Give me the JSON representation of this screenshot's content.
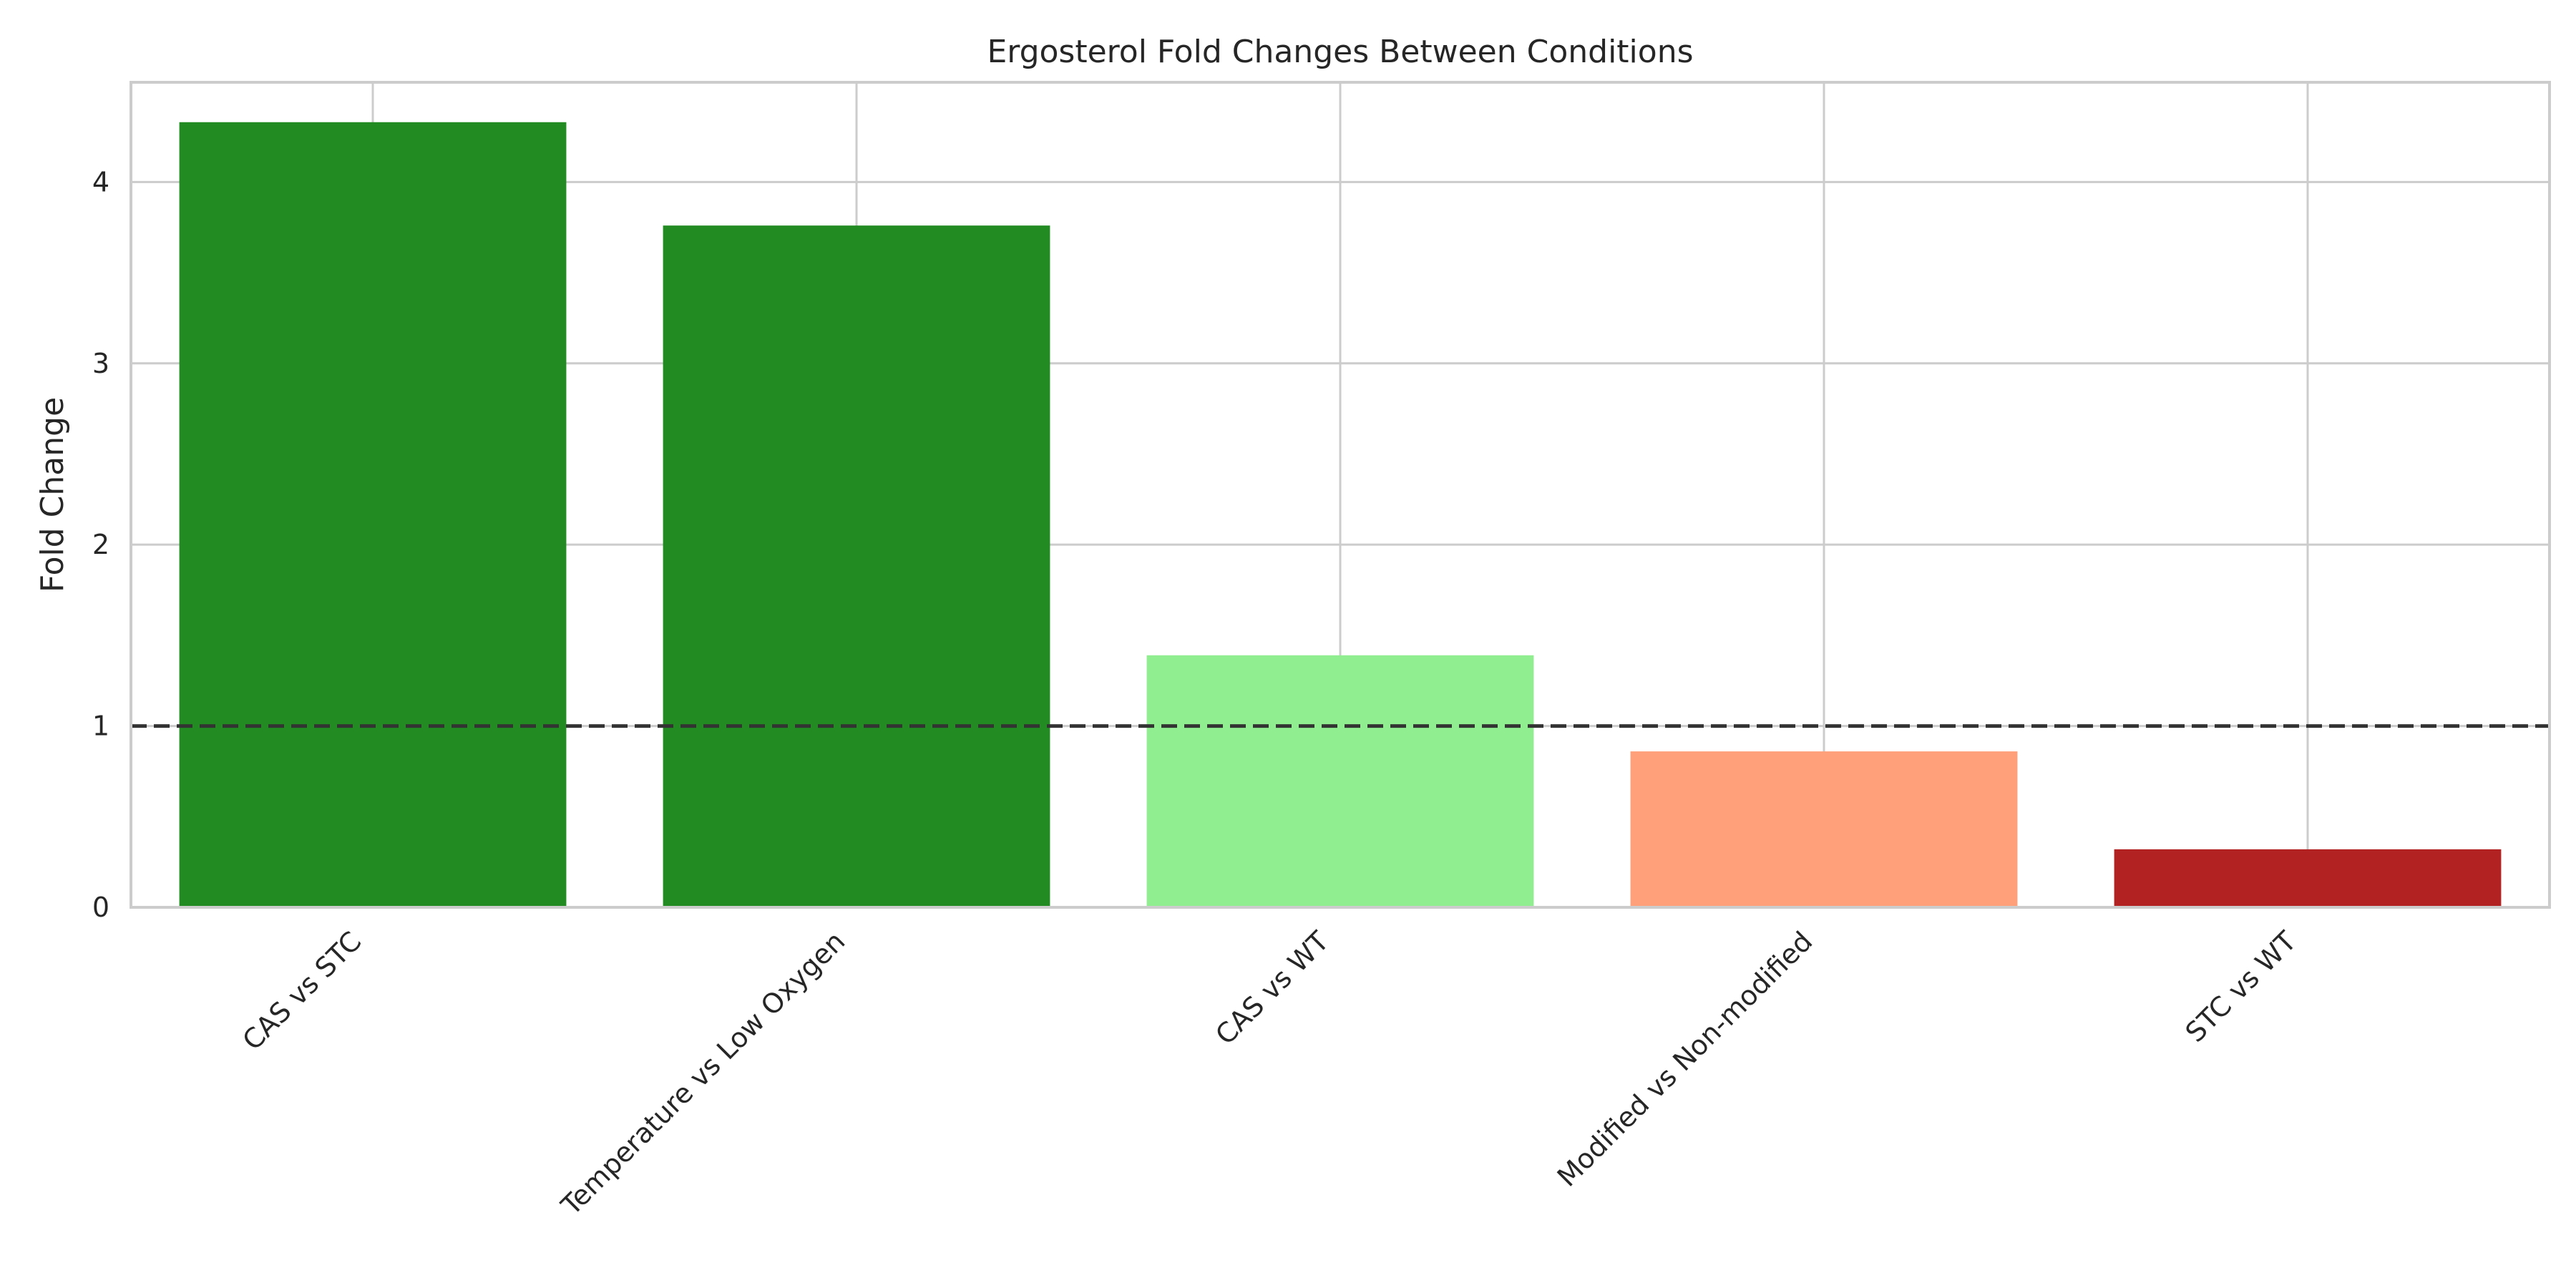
{
  "chart_data": {
    "type": "bar",
    "title": "Ergosterol Fold Changes Between Conditions",
    "xlabel": "",
    "ylabel": "Fold Change",
    "categories": [
      "CAS vs STC",
      "Temperature vs Low Oxygen",
      "CAS vs WT",
      "Modified vs Non-modified",
      "STC vs WT"
    ],
    "values": [
      4.33,
      3.76,
      1.39,
      0.86,
      0.32
    ],
    "colors": [
      "#228B22",
      "#228B22",
      "#90EE90",
      "#FFA07A",
      "#B22222"
    ],
    "ylim": [
      0,
      4.55
    ],
    "yticks": [
      "0",
      "1",
      "2",
      "3",
      "4"
    ],
    "grid": true,
    "reference_line": {
      "value": 1,
      "style": "dashed",
      "color": "#333333"
    }
  }
}
